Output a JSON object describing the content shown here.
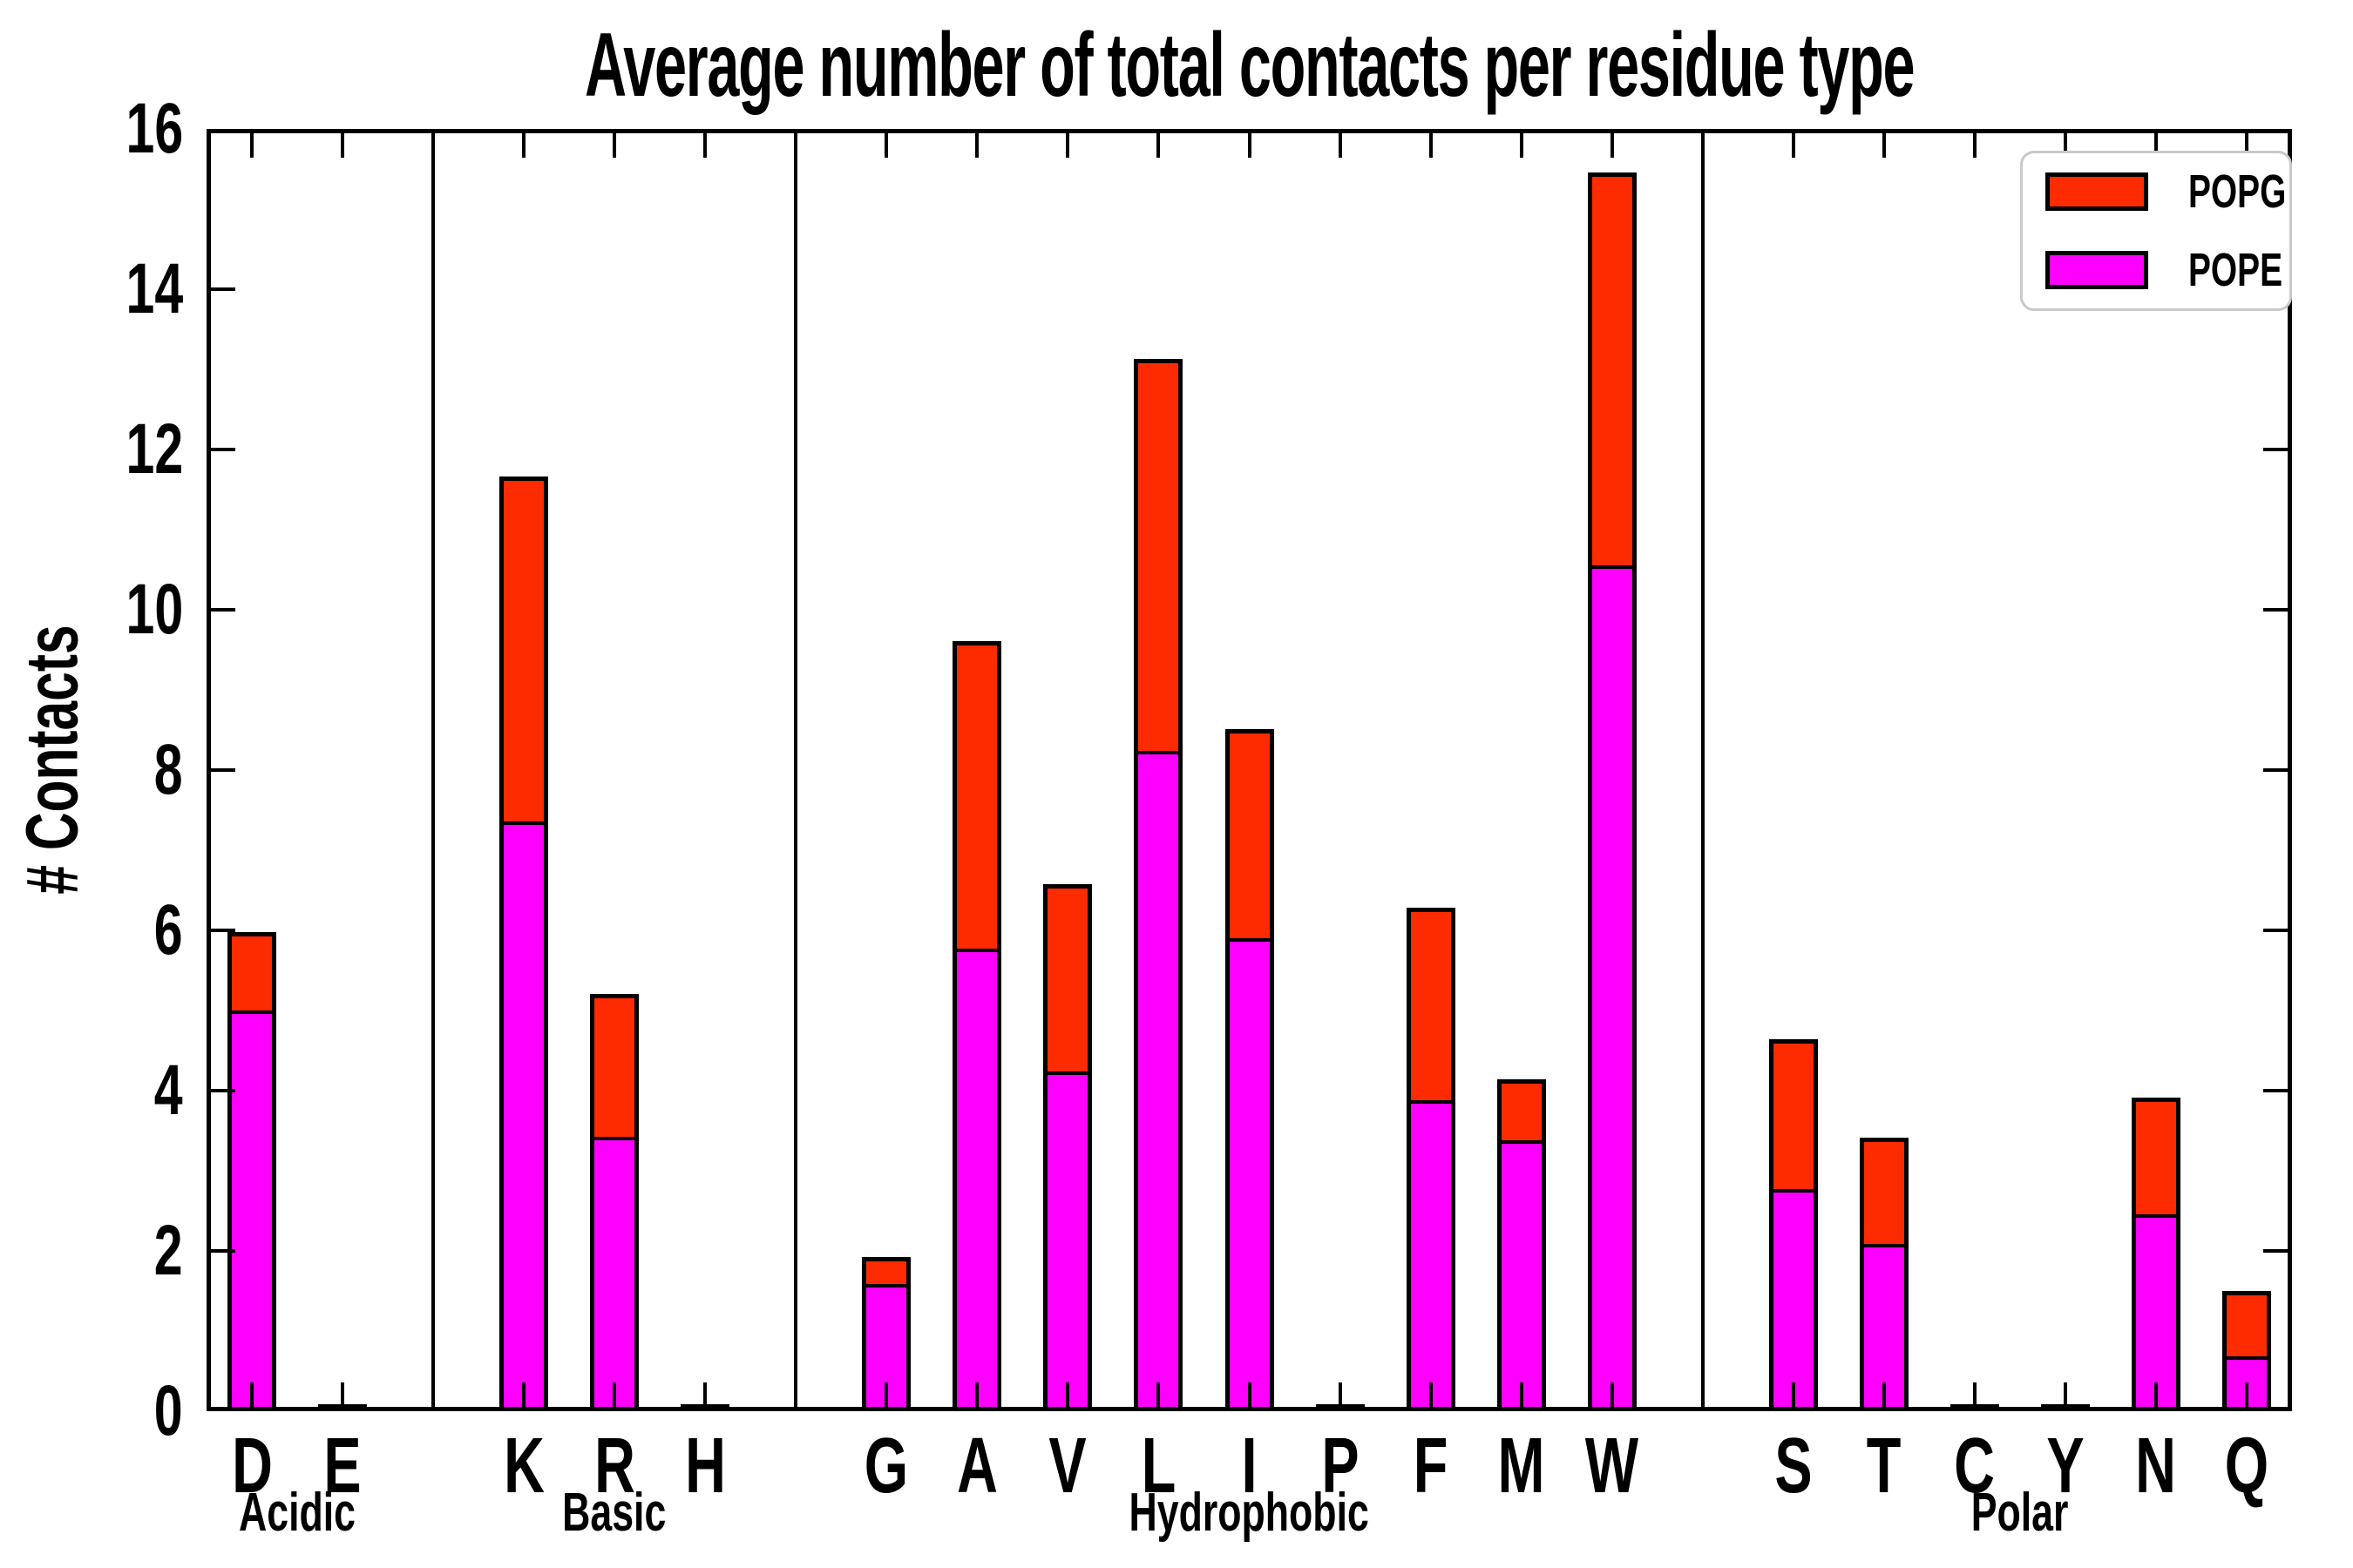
{
  "title": "Average number of total contacts per residue type",
  "ylabel": "# Contacts",
  "legend": [
    {
      "label": "POPG",
      "color": "#ff2b00"
    },
    {
      "label": "POPE",
      "color": "#ff00ff"
    }
  ],
  "colors": {
    "popg": "#ff2b00",
    "pope": "#ff00ff",
    "edge": "#000000"
  },
  "chart_data": {
    "type": "bar",
    "stacked": true,
    "title": "Average number of total contacts per residue type",
    "xlabel": "",
    "ylabel": "# Contacts",
    "ylim": [
      0,
      16
    ],
    "yticks": [
      0,
      2,
      4,
      6,
      8,
      10,
      12,
      14,
      16
    ],
    "grid": false,
    "legend_position": "upper right",
    "categories": [
      "D",
      "E",
      "K",
      "R",
      "H",
      "G",
      "A",
      "V",
      "L",
      "I",
      "P",
      "F",
      "M",
      "W",
      "S",
      "T",
      "C",
      "Y",
      "N",
      "Q"
    ],
    "groups": [
      {
        "name": "Acidic",
        "members": [
          "D",
          "E"
        ]
      },
      {
        "name": "Basic",
        "members": [
          "K",
          "R",
          "H"
        ]
      },
      {
        "name": "Hydrophobic",
        "members": [
          "G",
          "A",
          "V",
          "L",
          "I",
          "P",
          "F",
          "M",
          "W"
        ]
      },
      {
        "name": "Polar",
        "members": [
          "S",
          "T",
          "C",
          "Y",
          "N",
          "Q"
        ]
      }
    ],
    "series": [
      {
        "name": "POPE",
        "color": "#ff00ff",
        "values": [
          4.95,
          0.02,
          7.3,
          3.37,
          0.02,
          1.53,
          5.72,
          4.18,
          8.18,
          5.85,
          0.02,
          3.83,
          3.33,
          10.5,
          2.72,
          2.03,
          0.02,
          0.02,
          2.4,
          0.63
        ]
      },
      {
        "name": "POPG",
        "color": "#ff2b00",
        "values": [
          0.92,
          0.02,
          4.25,
          1.73,
          0.02,
          0.28,
          3.78,
          2.28,
          4.84,
          2.55,
          0.02,
          2.35,
          0.71,
          4.85,
          1.82,
          1.27,
          0.02,
          0.02,
          1.4,
          0.76
        ]
      }
    ],
    "totals": [
      5.87,
      0.04,
      11.55,
      5.1,
      0.04,
      1.81,
      9.5,
      6.46,
      13.02,
      8.4,
      0.04,
      6.18,
      4.04,
      15.35,
      4.54,
      3.3,
      0.04,
      0.04,
      3.8,
      1.39
    ]
  }
}
